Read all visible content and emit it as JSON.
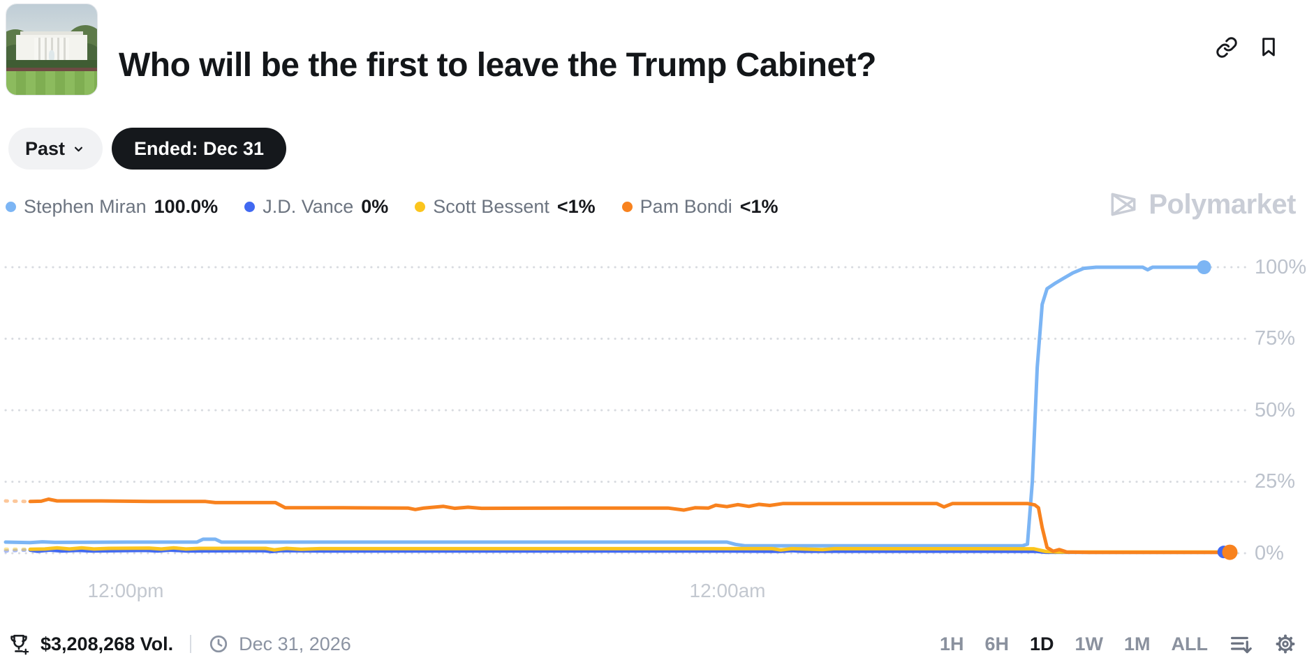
{
  "header": {
    "title": "Who will be the first to leave the Trump Cabinet?"
  },
  "controls": {
    "past_label": "Past",
    "ended_label": "Ended: Dec 31"
  },
  "legend": {
    "items": [
      {
        "name": "Stephen Miran",
        "value": "100.0%",
        "color": "#7cb5f4"
      },
      {
        "name": "J.D. Vance",
        "value": "0%",
        "color": "#4169f1"
      },
      {
        "name": "Scott Bessent",
        "value": "<1%",
        "color": "#fbc51d"
      },
      {
        "name": "Pam Bondi",
        "value": "<1%",
        "color": "#f8821e"
      }
    ]
  },
  "watermark": {
    "label": "Polymarket"
  },
  "chart_data": {
    "type": "line",
    "title": "Who will be the first to leave the Trump Cabinet?",
    "grid": "dotted-horizontal",
    "legend_position": "top-left",
    "x_axis": {
      "tick_labels": [
        "12:00pm",
        "12:00am"
      ],
      "tick_pos_pct": [
        9.8,
        58.8
      ],
      "window": "1D"
    },
    "y_axis": {
      "tick_labels": [
        "100%",
        "75%",
        "50%",
        "25%",
        "0%"
      ],
      "tick_values": [
        100,
        75,
        50,
        25,
        0
      ],
      "range": [
        0,
        100
      ]
    },
    "gridline_color": "#d8dbe0",
    "series": [
      {
        "name": "Stephen Miran",
        "color": "#7cb5f4",
        "dot_r": 10,
        "end_dot": [
          97.7,
          100
        ],
        "points": [
          [
            0,
            3.9
          ],
          [
            2,
            3.7
          ],
          [
            3,
            4.0
          ],
          [
            4,
            3.8
          ],
          [
            10,
            3.9
          ],
          [
            15.6,
            3.9
          ],
          [
            16.1,
            4.9
          ],
          [
            17.1,
            4.9
          ],
          [
            17.6,
            3.9
          ],
          [
            30,
            3.9
          ],
          [
            58.8,
            3.9
          ],
          [
            59.5,
            3.1
          ],
          [
            60.3,
            2.6
          ],
          [
            70,
            2.6
          ],
          [
            82.9,
            2.6
          ],
          [
            83.3,
            3.2
          ],
          [
            83.7,
            25
          ],
          [
            84.1,
            65
          ],
          [
            84.5,
            87
          ],
          [
            84.9,
            92.5
          ],
          [
            85.6,
            94.5
          ],
          [
            86.2,
            96
          ],
          [
            87.0,
            98
          ],
          [
            87.9,
            99.6
          ],
          [
            88.9,
            100
          ],
          [
            92.7,
            100
          ],
          [
            93.1,
            99.1
          ],
          [
            93.5,
            100
          ],
          [
            97.7,
            100
          ]
        ]
      },
      {
        "name": "J.D. Vance",
        "color": "#4169f1",
        "dot_r": 9,
        "end_dot": [
          99.3,
          0.45
        ],
        "lead_dashed_until": 2.0,
        "points": [
          [
            0,
            0.8
          ],
          [
            1.6,
            1.1
          ],
          [
            2.6,
            0.7
          ],
          [
            3.6,
            1.1
          ],
          [
            4.6,
            0.8
          ],
          [
            6,
            1.0
          ],
          [
            7,
            0.8
          ],
          [
            11.4,
            1.0
          ],
          [
            12.4,
            0.8
          ],
          [
            13.4,
            1.1
          ],
          [
            14.8,
            0.8
          ],
          [
            21.0,
            0.9
          ],
          [
            21.7,
            0.6
          ],
          [
            22.5,
            0.9
          ],
          [
            26,
            0.8
          ],
          [
            45,
            0.8
          ],
          [
            58.8,
            0.8
          ],
          [
            63.2,
            0.65
          ],
          [
            64.1,
            0.9
          ],
          [
            64.9,
            0.7
          ],
          [
            79,
            0.7
          ],
          [
            84.0,
            0.65
          ],
          [
            84.8,
            0.35
          ],
          [
            99.3,
            0.35
          ]
        ]
      },
      {
        "name": "Scott Bessent",
        "color": "#fbc51d",
        "lead_dashed_until": 2.0,
        "points": [
          [
            0,
            1.4
          ],
          [
            3.2,
            1.5
          ],
          [
            4.2,
            1.9
          ],
          [
            5.2,
            1.5
          ],
          [
            6.2,
            1.9
          ],
          [
            7.2,
            1.5
          ],
          [
            8.4,
            1.7
          ],
          [
            11.7,
            1.8
          ],
          [
            12.7,
            1.5
          ],
          [
            13.7,
            1.9
          ],
          [
            14.7,
            1.5
          ],
          [
            15.8,
            1.7
          ],
          [
            21.2,
            1.7
          ],
          [
            21.9,
            1.2
          ],
          [
            22.9,
            1.7
          ],
          [
            24.1,
            1.4
          ],
          [
            25.6,
            1.6
          ],
          [
            44,
            1.6
          ],
          [
            62.5,
            1.6
          ],
          [
            63.2,
            1.15
          ],
          [
            64.1,
            1.6
          ],
          [
            66.6,
            1.3
          ],
          [
            67.6,
            1.6
          ],
          [
            83.8,
            1.55
          ],
          [
            84.8,
            0.6
          ],
          [
            85.8,
            0.45
          ],
          [
            99.6,
            0.45
          ]
        ]
      },
      {
        "name": "Pam Bondi",
        "color": "#f8821e",
        "dot_r": 11,
        "end_dot": [
          99.8,
          0.35
        ],
        "lead_dashed_until": 2.0,
        "points": [
          [
            0,
            18.3
          ],
          [
            1.8,
            18.1
          ],
          [
            2.9,
            18.2
          ],
          [
            3.5,
            18.9
          ],
          [
            4.2,
            18.3
          ],
          [
            7.8,
            18.3
          ],
          [
            11.8,
            18.1
          ],
          [
            16.3,
            18.1
          ],
          [
            17.1,
            17.7
          ],
          [
            22.0,
            17.7
          ],
          [
            22.8,
            15.9
          ],
          [
            27.5,
            15.9
          ],
          [
            32.8,
            15.8
          ],
          [
            33.4,
            15.3
          ],
          [
            34.1,
            15.8
          ],
          [
            35.7,
            16.4
          ],
          [
            36.6,
            15.7
          ],
          [
            37.7,
            16.1
          ],
          [
            38.8,
            15.7
          ],
          [
            46,
            15.8
          ],
          [
            54,
            15.8
          ],
          [
            55.3,
            15.1
          ],
          [
            56.2,
            15.9
          ],
          [
            57.3,
            15.8
          ],
          [
            57.9,
            16.8
          ],
          [
            58.8,
            16.3
          ],
          [
            59.7,
            17.0
          ],
          [
            60.6,
            16.4
          ],
          [
            61.4,
            17.1
          ],
          [
            62.3,
            16.7
          ],
          [
            63.4,
            17.4
          ],
          [
            69,
            17.4
          ],
          [
            75.9,
            17.4
          ],
          [
            76.5,
            16.2
          ],
          [
            77.2,
            17.4
          ],
          [
            83.3,
            17.4
          ],
          [
            83.9,
            16.9
          ],
          [
            84.2,
            15.9
          ],
          [
            84.5,
            9
          ],
          [
            84.9,
            2.0
          ],
          [
            85.4,
            0.7
          ],
          [
            85.9,
            1.3
          ],
          [
            86.5,
            0.45
          ],
          [
            88.3,
            0.3
          ],
          [
            99.8,
            0.3
          ]
        ]
      }
    ]
  },
  "footer": {
    "volume": "$3,208,268 Vol.",
    "end_date": "Dec 31, 2026",
    "ranges": [
      "1H",
      "6H",
      "1D",
      "1W",
      "1M",
      "ALL"
    ],
    "selected_range": "1D"
  }
}
